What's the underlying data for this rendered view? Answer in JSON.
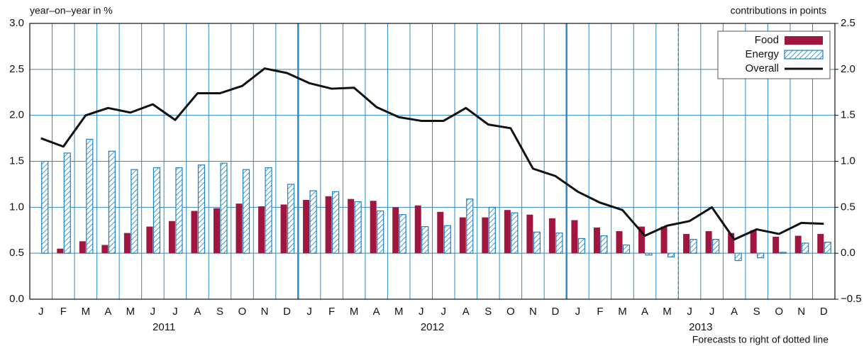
{
  "chart_data": {
    "type": "bar_line",
    "y_label": "year–on–year in %",
    "y2_label": "contributions in points",
    "note": "Forecasts to right of dotted line",
    "categories": [
      "J",
      "F",
      "M",
      "A",
      "M",
      "J",
      "J",
      "A",
      "S",
      "O",
      "N",
      "D",
      "J",
      "F",
      "M",
      "A",
      "M",
      "J",
      "J",
      "A",
      "S",
      "O",
      "N",
      "D",
      "J",
      "F",
      "M",
      "A",
      "M",
      "J",
      "J",
      "A",
      "S",
      "O",
      "N",
      "D"
    ],
    "years": [
      "2011",
      "2012",
      "2013"
    ],
    "ylim": [
      0,
      3
    ],
    "yticks": [
      {
        "value": 0,
        "label": "0.0"
      },
      0.5,
      {
        "value": 1,
        "label": "1.0"
      },
      1.5,
      {
        "value": 2,
        "label": "2.0"
      },
      2.5,
      {
        "value": 3,
        "label": "3.0"
      }
    ],
    "y2lim": [
      -0.5,
      2.5
    ],
    "y2ticks": [
      {
        "value": -0.5,
        "label": "−0.5"
      },
      {
        "value": 0,
        "label": "0.0"
      },
      0.5,
      {
        "value": 1,
        "label": "1.0"
      },
      1.5,
      {
        "value": 2,
        "label": "2.0"
      },
      2.5
    ],
    "grid": true,
    "legend": "top-right",
    "series": [
      {
        "name": "Food",
        "type": "bar",
        "axis": "y2",
        "color": "#a0163f",
        "values": [
          0,
          0.05,
          0.13,
          0.09,
          0.22,
          0.29,
          0.35,
          0.46,
          0.49,
          0.54,
          0.51,
          0.53,
          0.58,
          0.62,
          0.59,
          0.57,
          0.5,
          0.52,
          0.45,
          0.39,
          0.39,
          0.47,
          0.42,
          0.38,
          0.36,
          0.28,
          0.24,
          0.29,
          0.29,
          0.21,
          0.24,
          0.22,
          0.25,
          0.18,
          0.19,
          0.21
        ]
      },
      {
        "name": "Energy",
        "type": "hatched-bar",
        "axis": "y2",
        "color": "#1a82c4",
        "values": [
          1.0,
          1.09,
          1.24,
          1.11,
          0.91,
          0.93,
          0.93,
          0.96,
          0.98,
          0.91,
          0.93,
          0.75,
          0.68,
          0.67,
          0.56,
          0.46,
          0.42,
          0.29,
          0.3,
          0.59,
          0.5,
          0.44,
          0.23,
          0.22,
          0.16,
          0.19,
          0.09,
          -0.02,
          -0.04,
          0.15,
          0.15,
          -0.08,
          -0.05,
          0.01,
          0.11,
          0.12
        ]
      },
      {
        "name": "Overall",
        "type": "line",
        "axis": "y",
        "color": "#111111",
        "values": [
          1.75,
          1.66,
          2.0,
          2.08,
          2.03,
          2.12,
          1.95,
          2.24,
          2.24,
          2.32,
          2.51,
          2.46,
          2.35,
          2.29,
          2.3,
          2.09,
          1.98,
          1.94,
          1.94,
          2.08,
          1.9,
          1.86,
          1.42,
          1.34,
          1.17,
          1.05,
          0.97,
          0.69,
          0.8,
          0.85,
          1.0,
          0.65,
          0.76,
          0.71,
          0.83,
          0.82
        ]
      }
    ]
  }
}
